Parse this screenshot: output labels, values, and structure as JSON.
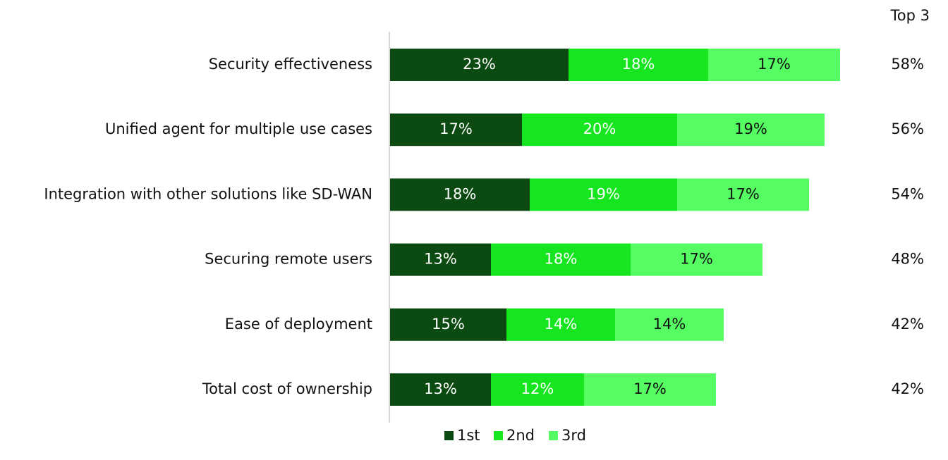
{
  "chart_data": {
    "type": "stacked-bar-horizontal",
    "categories": [
      "Security effectiveness",
      "Unified agent for multiple use cases",
      "Integration with other solutions like SD-WAN",
      "Securing remote users",
      "Ease of deployment",
      "Total cost of ownership"
    ],
    "series": [
      {
        "name": "1st",
        "color": "#0b4a10",
        "values": [
          23,
          17,
          18,
          13,
          15,
          13
        ],
        "value_labels": [
          "23%",
          "17%",
          "18%",
          "13%",
          "15%",
          "13%"
        ]
      },
      {
        "name": "2nd",
        "color": "#16e620",
        "values": [
          18,
          20,
          19,
          18,
          14,
          12
        ],
        "value_labels": [
          "18%",
          "20%",
          "19%",
          "18%",
          "14%",
          "12%"
        ]
      },
      {
        "name": "3rd",
        "color": "#55fc62",
        "values": [
          17,
          19,
          17,
          17,
          14,
          17
        ],
        "value_labels": [
          "17%",
          "19%",
          "17%",
          "17%",
          "14%",
          "17%"
        ]
      }
    ],
    "top3": {
      "title": "Top 3",
      "values": [
        58,
        56,
        54,
        48,
        42,
        42
      ],
      "value_labels": [
        "58%",
        "56%",
        "54%",
        "48%",
        "42%",
        "42%"
      ]
    },
    "legend": "bottom"
  }
}
